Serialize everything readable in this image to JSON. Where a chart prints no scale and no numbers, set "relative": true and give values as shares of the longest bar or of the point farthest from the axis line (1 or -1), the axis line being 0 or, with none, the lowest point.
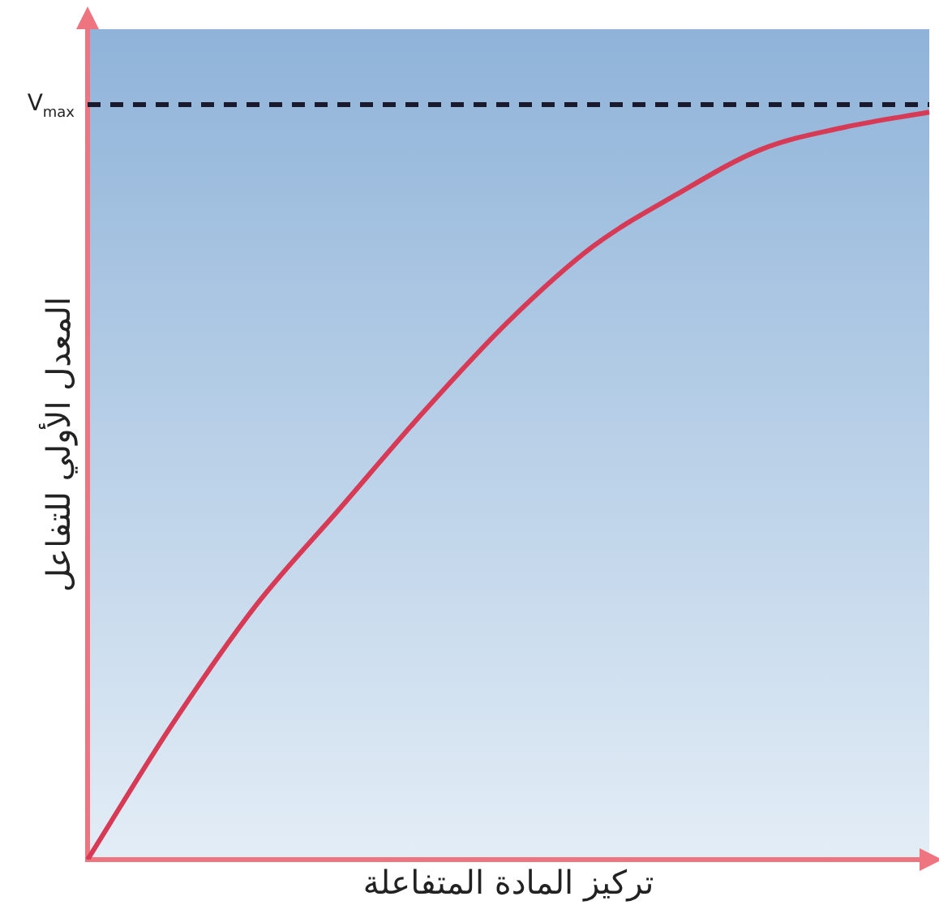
{
  "chart_data": {
    "type": "line",
    "relative": true,
    "xlabel": "تركيز المادة المتفاعلة",
    "ylabel": "المعدل الأولي للتفاعل",
    "categories": [
      null,
      null,
      null,
      null,
      null,
      null,
      null,
      null,
      null,
      null,
      null
    ],
    "series": [
      {
        "color": "#d63a55",
        "values": [
          0,
          0.18,
          0.34,
          0.47,
          0.6,
          0.72,
          0.82,
          0.89,
          0.95,
          0.98,
          1
        ]
      }
    ],
    "ref_lines": [
      {
        "axis": "y",
        "value": 1.01,
        "label": "V$_{max}$",
        "color": "#1a1a2e",
        "line_style": "dashed"
      }
    ],
    "grid": false,
    "legend": false,
    "marker": "none",
    "line_style": "solid"
  }
}
